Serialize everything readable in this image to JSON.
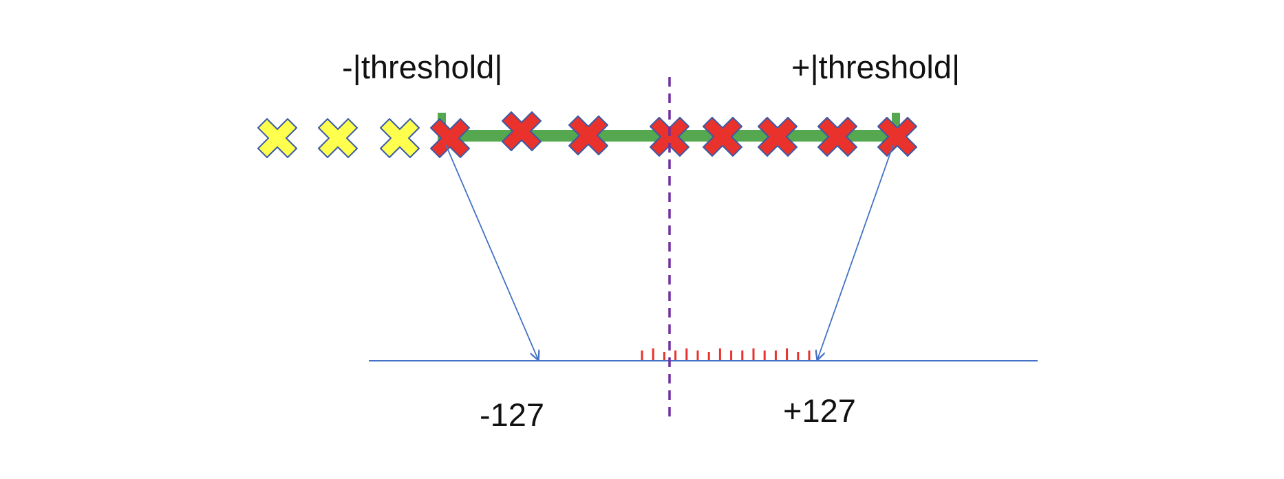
{
  "labels": {
    "neg_threshold": "-|threshold|",
    "pos_threshold": "+|threshold|",
    "neg_127": "-127",
    "pos_127": "+127"
  },
  "colors": {
    "clip_range": "#55a84f",
    "outlier_marker": "#ffff4d",
    "inlier_marker": "#e8322b",
    "marker_outline": "#3b5aa6",
    "arrow": "#4472c4",
    "axis": "#4472c4",
    "zero_line": "#7030a0",
    "quantized_ticks": "#e8322b"
  },
  "markers": {
    "outlier_count": 3,
    "inlier_count": 8,
    "outlier_icon": "cross-icon",
    "inlier_icon": "cross-icon"
  },
  "quantized_tick_count": 16
}
